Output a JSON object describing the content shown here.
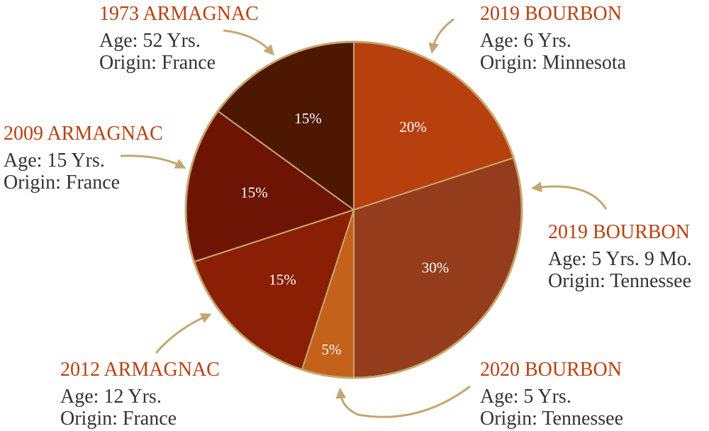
{
  "chart_data": {
    "type": "pie",
    "categories": [
      "2019 BOURBON",
      "2019 BOURBON",
      "2020 BOURBON",
      "2012 ARMAGNAC",
      "2009 ARMAGNAC",
      "1973 ARMAGNAC"
    ],
    "values": [
      20,
      30,
      5,
      15,
      15,
      15
    ],
    "value_labels": [
      "20%",
      "30%",
      "5%",
      "15%",
      "15%",
      "15%"
    ],
    "colors": [
      "#b8400f",
      "#953c1c",
      "#c4621b",
      "#8a1f05",
      "#6e1405",
      "#4e1702"
    ],
    "ages": [
      "Age: 6 Yrs.",
      "Age: 5 Yrs. 9 Mo.",
      "Age: 5 Yrs.",
      "Age: 12 Yrs.",
      "Age: 15 Yrs.",
      "Age: 52 Yrs."
    ],
    "origins": [
      "Origin: Minnesota",
      "Origin: Tennessee",
      "Origin: Tennessee",
      "Origin: France",
      "Origin: France",
      "Origin: France"
    ]
  }
}
